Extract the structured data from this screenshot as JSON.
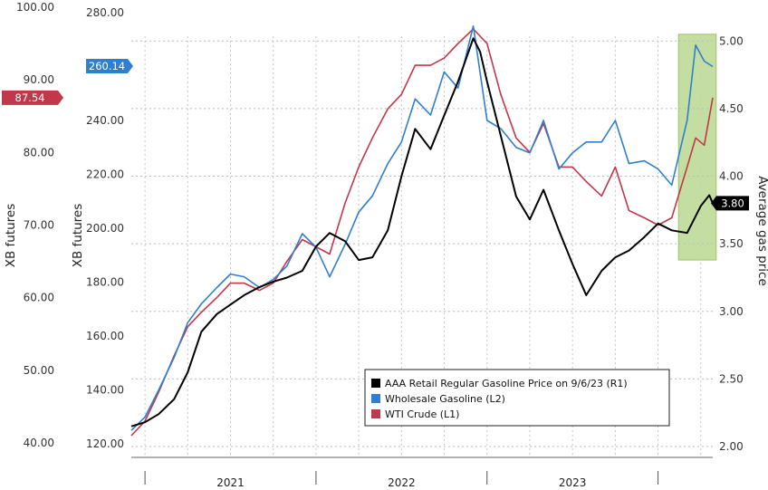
{
  "chart_data": {
    "type": "line",
    "title": "",
    "axes": {
      "left1": {
        "label": "XB futures",
        "ticks": [
          "40.00",
          "50.00",
          "60.00",
          "70.00",
          "80.00",
          "90.00",
          "100.00"
        ],
        "range": [
          38,
          100
        ]
      },
      "left2": {
        "label": "XB futures",
        "ticks": [
          "120.00",
          "140.00",
          "160.00",
          "180.00",
          "200.00",
          "220.00",
          "240.00",
          "260.00",
          "280.00"
        ],
        "range": [
          115,
          282
        ]
      },
      "right1": {
        "label": "Average gas price",
        "ticks": [
          "2.00",
          "2.50",
          "3.00",
          "3.50",
          "4.00",
          "4.50",
          "5.00"
        ],
        "range": [
          1.92,
          5.25
        ]
      }
    },
    "x_categories": [
      "2021",
      "2022",
      "2023"
    ],
    "x_range": [
      2020.42,
      2023.82
    ],
    "series": [
      {
        "name": "AAA Retail Regular Gasoline Price on 9/6/23 (R1)",
        "axis": "right1",
        "color": "#000000",
        "last_value_label": "3.80",
        "points": [
          [
            2020.42,
            2.15
          ],
          [
            2020.5,
            2.18
          ],
          [
            2020.58,
            2.24
          ],
          [
            2020.67,
            2.35
          ],
          [
            2020.75,
            2.55
          ],
          [
            2020.83,
            2.85
          ],
          [
            2020.92,
            2.98
          ],
          [
            2021.0,
            3.05
          ],
          [
            2021.08,
            3.12
          ],
          [
            2021.17,
            3.18
          ],
          [
            2021.25,
            3.22
          ],
          [
            2021.33,
            3.25
          ],
          [
            2021.42,
            3.3
          ],
          [
            2021.5,
            3.48
          ],
          [
            2021.58,
            3.58
          ],
          [
            2021.67,
            3.52
          ],
          [
            2021.75,
            3.38
          ],
          [
            2021.83,
            3.4
          ],
          [
            2021.92,
            3.6
          ],
          [
            2022.0,
            4.0
          ],
          [
            2022.08,
            4.35
          ],
          [
            2022.17,
            4.2
          ],
          [
            2022.25,
            4.45
          ],
          [
            2022.33,
            4.7
          ],
          [
            2022.42,
            5.02
          ],
          [
            2022.46,
            4.92
          ],
          [
            2022.5,
            4.7
          ],
          [
            2022.58,
            4.3
          ],
          [
            2022.67,
            3.85
          ],
          [
            2022.75,
            3.68
          ],
          [
            2022.83,
            3.9
          ],
          [
            2022.92,
            3.6
          ],
          [
            2023.0,
            3.35
          ],
          [
            2023.08,
            3.12
          ],
          [
            2023.17,
            3.3
          ],
          [
            2023.25,
            3.4
          ],
          [
            2023.33,
            3.45
          ],
          [
            2023.42,
            3.55
          ],
          [
            2023.5,
            3.65
          ],
          [
            2023.58,
            3.6
          ],
          [
            2023.67,
            3.58
          ],
          [
            2023.75,
            3.78
          ],
          [
            2023.8,
            3.86
          ],
          [
            2023.82,
            3.8
          ]
        ]
      },
      {
        "name": "Wholesale Gasoline (L2)",
        "axis": "left2",
        "color": "#2f7fd0",
        "last_value_label": "260.14",
        "points": [
          [
            2020.42,
            125
          ],
          [
            2020.5,
            130
          ],
          [
            2020.58,
            140
          ],
          [
            2020.67,
            152
          ],
          [
            2020.75,
            165
          ],
          [
            2020.83,
            172
          ],
          [
            2020.92,
            178
          ],
          [
            2021.0,
            183
          ],
          [
            2021.08,
            182
          ],
          [
            2021.17,
            178
          ],
          [
            2021.25,
            181
          ],
          [
            2021.33,
            186
          ],
          [
            2021.42,
            198
          ],
          [
            2021.5,
            193
          ],
          [
            2021.58,
            182
          ],
          [
            2021.67,
            194
          ],
          [
            2021.75,
            206
          ],
          [
            2021.83,
            212
          ],
          [
            2021.92,
            224
          ],
          [
            2022.0,
            232
          ],
          [
            2022.08,
            248
          ],
          [
            2022.17,
            242
          ],
          [
            2022.25,
            258
          ],
          [
            2022.33,
            252
          ],
          [
            2022.42,
            275
          ],
          [
            2022.5,
            240
          ],
          [
            2022.58,
            237
          ],
          [
            2022.67,
            230
          ],
          [
            2022.75,
            228
          ],
          [
            2022.83,
            240
          ],
          [
            2022.92,
            222
          ],
          [
            2023.0,
            228
          ],
          [
            2023.08,
            232
          ],
          [
            2023.17,
            232
          ],
          [
            2023.25,
            240
          ],
          [
            2023.33,
            224
          ],
          [
            2023.42,
            225
          ],
          [
            2023.5,
            222
          ],
          [
            2023.58,
            216
          ],
          [
            2023.67,
            240
          ],
          [
            2023.72,
            268
          ],
          [
            2023.77,
            262
          ],
          [
            2023.82,
            260
          ]
        ]
      },
      {
        "name": "WTI Crude (L1)",
        "axis": "left1",
        "color": "#c0384a",
        "last_value_label": "87.54",
        "points": [
          [
            2020.42,
            41
          ],
          [
            2020.5,
            43
          ],
          [
            2020.58,
            47
          ],
          [
            2020.67,
            52
          ],
          [
            2020.75,
            56
          ],
          [
            2020.83,
            58
          ],
          [
            2020.92,
            60
          ],
          [
            2021.0,
            62
          ],
          [
            2021.08,
            62
          ],
          [
            2021.17,
            61
          ],
          [
            2021.25,
            62
          ],
          [
            2021.33,
            65
          ],
          [
            2021.42,
            68
          ],
          [
            2021.5,
            67
          ],
          [
            2021.58,
            66
          ],
          [
            2021.67,
            73
          ],
          [
            2021.75,
            78
          ],
          [
            2021.83,
            82
          ],
          [
            2021.92,
            86
          ],
          [
            2022.0,
            88
          ],
          [
            2022.08,
            92
          ],
          [
            2022.17,
            92
          ],
          [
            2022.25,
            93
          ],
          [
            2022.33,
            95
          ],
          [
            2022.42,
            97
          ],
          [
            2022.5,
            95
          ],
          [
            2022.58,
            88
          ],
          [
            2022.67,
            82
          ],
          [
            2022.75,
            80
          ],
          [
            2022.83,
            84
          ],
          [
            2022.92,
            78
          ],
          [
            2023.0,
            78
          ],
          [
            2023.08,
            76
          ],
          [
            2023.17,
            74
          ],
          [
            2023.25,
            78
          ],
          [
            2023.33,
            72
          ],
          [
            2023.42,
            71
          ],
          [
            2023.5,
            70
          ],
          [
            2023.58,
            71
          ],
          [
            2023.67,
            78
          ],
          [
            2023.72,
            82
          ],
          [
            2023.77,
            81
          ],
          [
            2023.82,
            87.54
          ]
        ]
      }
    ],
    "legend": {
      "position": "bottom-right",
      "entries": [
        {
          "label": "AAA Retail Regular Gasoline Price on 9/6/23 (R1)",
          "color": "#000000"
        },
        {
          "label": "Wholesale Gasoline (L2)",
          "color": "#2f7fd0"
        },
        {
          "label": "WTI Crude (L1)",
          "color": "#c0384a"
        }
      ]
    },
    "highlight": {
      "x_range": [
        2023.62,
        2023.84
      ],
      "color": "#b5d68a"
    },
    "grid": true
  }
}
